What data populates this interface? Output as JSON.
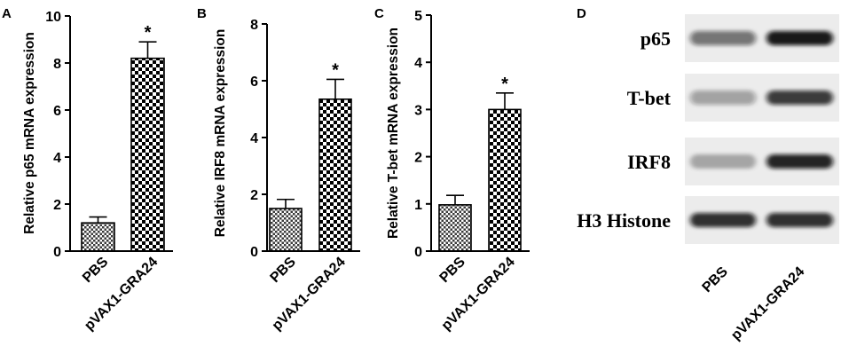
{
  "chart_data": [
    {
      "panel": "A",
      "type": "bar",
      "ylabel": "Relative p65 mRNA expression",
      "categories": [
        "PBS",
        "pVAX1-GRA24"
      ],
      "values": [
        1.2,
        8.2
      ],
      "errors": [
        0.25,
        0.7
      ],
      "significance": [
        "",
        "*"
      ],
      "ylim": [
        0,
        10
      ],
      "yticks": [
        0,
        2,
        4,
        6,
        8,
        10
      ]
    },
    {
      "panel": "B",
      "type": "bar",
      "ylabel": "Relative IRF8 mRNA expression",
      "categories": [
        "PBS",
        "pVAX1-GRA24"
      ],
      "values": [
        1.5,
        5.35
      ],
      "errors": [
        0.32,
        0.7
      ],
      "significance": [
        "",
        "*"
      ],
      "ylim": [
        0,
        8
      ],
      "yticks": [
        0,
        2,
        4,
        6,
        8
      ]
    },
    {
      "panel": "C",
      "type": "bar",
      "ylabel": "Relative T-bet mRNA expression",
      "categories": [
        "PBS",
        "pVAX1-GRA24"
      ],
      "values": [
        0.98,
        3.0
      ],
      "errors": [
        0.2,
        0.35
      ],
      "significance": [
        "",
        "*"
      ],
      "ylim": [
        0,
        5
      ],
      "yticks": [
        0,
        1,
        2,
        3,
        4,
        5
      ]
    }
  ],
  "blot": {
    "panel": "D",
    "rows": [
      {
        "label": "p65",
        "intensity": [
          0.55,
          0.95
        ]
      },
      {
        "label": "T-bet",
        "intensity": [
          0.35,
          0.8
        ]
      },
      {
        "label": "IRF8",
        "intensity": [
          0.3,
          0.9
        ]
      },
      {
        "label": "H3 Histone",
        "intensity": [
          0.85,
          0.85
        ]
      }
    ],
    "lanes": [
      "PBS",
      "pVAX1-GRA24"
    ]
  }
}
